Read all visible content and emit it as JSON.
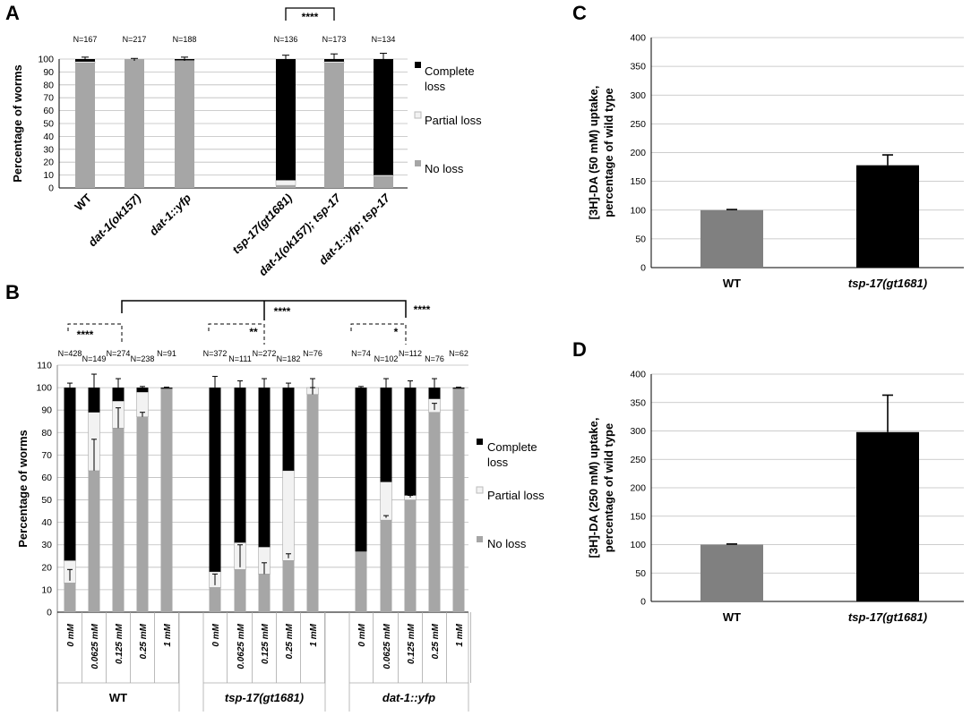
{
  "chart_data": [
    {
      "panel": "A",
      "type": "bar",
      "stacked": true,
      "ylabel": "Percentage of worms",
      "ylim": [
        0,
        100
      ],
      "yticks": [
        0,
        10,
        20,
        30,
        40,
        50,
        60,
        70,
        80,
        90,
        100
      ],
      "categories": [
        {
          "label": "WT",
          "italic": false,
          "n": "N=167"
        },
        {
          "label": "dat-1(ok157)",
          "italic": true,
          "n": "N=217"
        },
        {
          "label": "dat-1::yfp",
          "italic": true,
          "n": "N=188"
        },
        {
          "label": "tsp-17(gt1681)",
          "italic": true,
          "n": "N=136"
        },
        {
          "label": "dat-1(ok157); tsp-17",
          "italic": true,
          "n": "N=173"
        },
        {
          "label": "dat-1::yfp; tsp-17",
          "italic": true,
          "n": "N=134"
        }
      ],
      "series": [
        {
          "name": "No loss",
          "color": "#a6a6a6",
          "values": [
            97,
            100,
            99,
            2,
            97,
            9
          ]
        },
        {
          "name": "Partial loss",
          "color": "#f2f2f2",
          "values": [
            1,
            0,
            0,
            4,
            1,
            1
          ]
        },
        {
          "name": "Complete loss",
          "color": "#000000",
          "values": [
            2,
            0,
            1,
            94,
            2,
            90
          ]
        }
      ],
      "errors": [
        1.5,
        0.5,
        1.5,
        3,
        4,
        4.5
      ],
      "legend": [
        "Complete loss",
        "Partial loss",
        "No loss"
      ],
      "significance": [
        {
          "from": 3,
          "to": 4,
          "label": "****"
        }
      ]
    },
    {
      "panel": "B",
      "type": "bar",
      "stacked": true,
      "ylabel": "Percentage of worms",
      "ylim": [
        0,
        110
      ],
      "yticks": [
        0,
        10,
        20,
        30,
        40,
        50,
        60,
        70,
        80,
        90,
        100,
        110
      ],
      "groups": [
        {
          "label": "WT",
          "italic": false,
          "bars": [
            {
              "conc": "0 mM",
              "n": "N=428",
              "noloss": 13,
              "partial": 10,
              "complete": 77,
              "err_top": 2,
              "err_mid": [
                14,
                19
              ]
            },
            {
              "conc": "0.0625 mM",
              "n": "N=149",
              "noloss": 63,
              "partial": 26,
              "complete": 11,
              "err_top": 6,
              "err_mid": [
                63,
                77
              ]
            },
            {
              "conc": "0.125 mM",
              "n": "N=274",
              "noloss": 82,
              "partial": 12,
              "complete": 6,
              "err_top": 4,
              "err_mid": [
                82,
                91
              ]
            },
            {
              "conc": "0.25 mM",
              "n": "N=238",
              "noloss": 87,
              "partial": 11,
              "complete": 2,
              "err_top": 0.5,
              "err_mid": [
                87,
                89
              ]
            },
            {
              "conc": "1 mM",
              "n": "N=91",
              "noloss": 99.5,
              "partial": 0,
              "complete": 0.5,
              "err_top": 0.2,
              "err_mid": null
            }
          ]
        },
        {
          "label": "tsp-17(gt1681)",
          "italic": true,
          "bars": [
            {
              "conc": "0 mM",
              "n": "N=372",
              "noloss": 11,
              "partial": 7,
              "complete": 82,
              "err_top": 5,
              "err_mid": [
                12,
                17
              ]
            },
            {
              "conc": "0.0625 mM",
              "n": "N=111",
              "noloss": 19,
              "partial": 12,
              "complete": 69,
              "err_top": 3,
              "err_mid": [
                20,
                30
              ]
            },
            {
              "conc": "0.125 mM",
              "n": "N=272",
              "noloss": 17,
              "partial": 12,
              "complete": 71,
              "err_top": 4,
              "err_mid": [
                17,
                22
              ]
            },
            {
              "conc": "0.25 mM",
              "n": "N=182",
              "noloss": 23,
              "partial": 40,
              "complete": 37,
              "err_top": 2,
              "err_mid": [
                24,
                26
              ]
            },
            {
              "conc": "1 mM",
              "n": "N=76",
              "noloss": 97,
              "partial": 3,
              "complete": 0,
              "err_top": 4,
              "err_mid": [
                97,
                100
              ]
            }
          ]
        },
        {
          "label": "dat-1::yfp",
          "italic": true,
          "bars": [
            {
              "conc": "0 mM",
              "n": "N=74",
              "noloss": 27,
              "partial": 0,
              "complete": 73,
              "err_top": 0.5,
              "err_mid": null
            },
            {
              "conc": "0.0625 mM",
              "n": "N=102",
              "noloss": 41,
              "partial": 17,
              "complete": 42,
              "err_top": 4,
              "err_mid": [
                42,
                43
              ]
            },
            {
              "conc": "0.125 mM",
              "n": "N=112",
              "noloss": 50,
              "partial": 2,
              "complete": 48,
              "err_top": 3,
              "err_mid": [
                51,
                52
              ]
            },
            {
              "conc": "0.25 mM",
              "n": "N=76",
              "noloss": 89,
              "partial": 6,
              "complete": 5,
              "err_top": 4,
              "err_mid": [
                90,
                93
              ]
            },
            {
              "conc": "1 mM",
              "n": "N=62",
              "noloss": 99.5,
              "partial": 0,
              "complete": 0.5,
              "err_top": 0.2,
              "err_mid": null
            }
          ]
        }
      ],
      "legend": [
        "Complete loss",
        "Partial loss",
        "No loss"
      ],
      "significance": [
        {
          "label": "****",
          "type": "dashed",
          "group": 0
        },
        {
          "label": "**",
          "type": "dashed",
          "group": 1
        },
        {
          "label": "*",
          "type": "dashed",
          "group": 2
        },
        {
          "label": "****",
          "type": "solid-mid"
        },
        {
          "label": "****",
          "type": "solid-right"
        }
      ]
    },
    {
      "panel": "C",
      "type": "bar",
      "ylabel": "[3H]-DA (50 mM) uptake, percentage of wild type",
      "ylim": [
        0,
        400
      ],
      "yticks": [
        0,
        50,
        100,
        150,
        200,
        250,
        300,
        350,
        400
      ],
      "categories": [
        {
          "label": "WT",
          "italic": false
        },
        {
          "label": "tsp-17(gt1681)",
          "italic": true
        }
      ],
      "values": [
        100,
        178
      ],
      "errors": [
        1,
        18
      ],
      "colors": [
        "#808080",
        "#000000"
      ]
    },
    {
      "panel": "D",
      "type": "bar",
      "ylabel": "[3H]-DA (250 mM) uptake, percentage of wild type",
      "ylim": [
        0,
        400
      ],
      "yticks": [
        0,
        50,
        100,
        150,
        200,
        250,
        300,
        350,
        400
      ],
      "categories": [
        {
          "label": "WT",
          "italic": false
        },
        {
          "label": "tsp-17(gt1681)",
          "italic": true
        }
      ],
      "values": [
        100,
        298
      ],
      "errors": [
        1,
        65
      ],
      "colors": [
        "#808080",
        "#000000"
      ]
    }
  ]
}
